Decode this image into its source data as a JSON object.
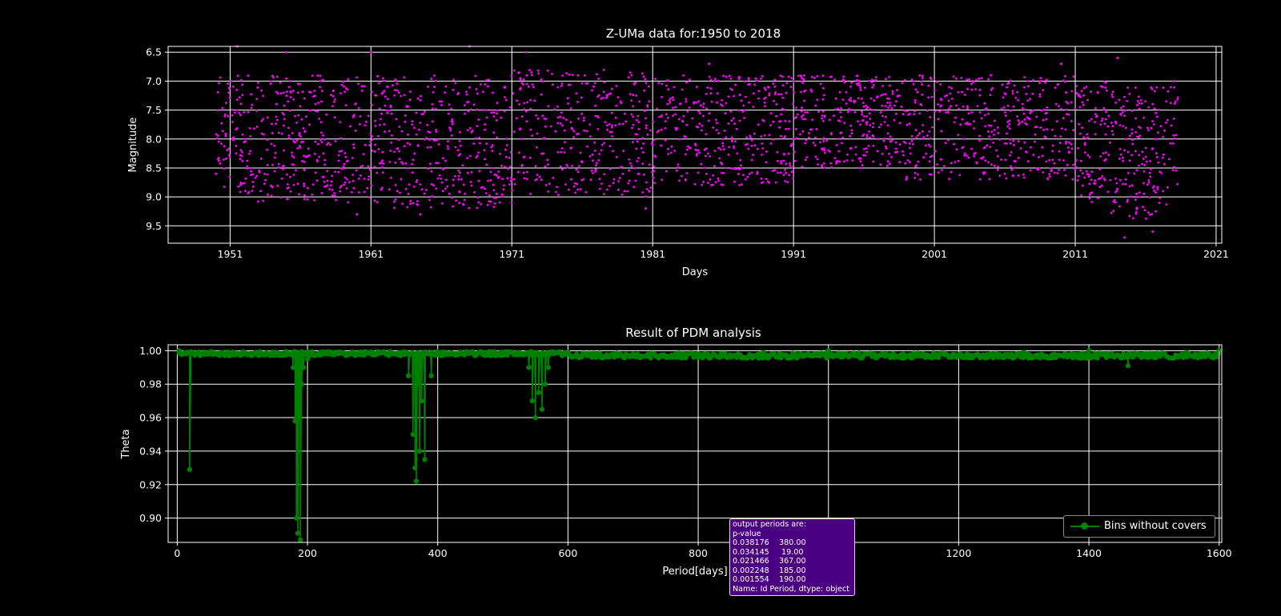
{
  "chart_data": [
    {
      "type": "scatter",
      "title": "Z-UMa data for:1950 to 2018",
      "xlabel": "Days",
      "ylabel": "Magnitude",
      "y_inverted": true,
      "xlim": [
        1946.6,
        2021.4
      ],
      "ylim": [
        9.8,
        6.4
      ],
      "x_ticks": [
        "1951",
        "1961",
        "1971",
        "1981",
        "1991",
        "2001",
        "2011",
        "2021"
      ],
      "y_ticks": [
        "6.5",
        "7.0",
        "7.5",
        "8.0",
        "8.5",
        "9.0",
        "9.5"
      ],
      "grid": true,
      "marker_color": "#ff00ff",
      "sample_points": [
        [
          1950.0,
          8.6
        ],
        [
          1951.5,
          6.4
        ],
        [
          1954.0,
          7.9
        ],
        [
          1955.0,
          6.5
        ],
        [
          1956.5,
          8.3
        ],
        [
          1960.0,
          9.3
        ],
        [
          1961.0,
          6.5
        ],
        [
          1964.5,
          9.3
        ],
        [
          1968.0,
          6.4
        ],
        [
          1970.5,
          7.1
        ],
        [
          1972.0,
          6.5
        ],
        [
          1976.0,
          8.4
        ],
        [
          1979.0,
          8.9
        ],
        [
          1980.5,
          9.2
        ],
        [
          1985.0,
          6.7
        ],
        [
          1990.0,
          7.8
        ],
        [
          1995.0,
          7.5
        ],
        [
          1999.0,
          8.7
        ],
        [
          2005.0,
          6.9
        ],
        [
          2010.0,
          6.7
        ],
        [
          2014.0,
          6.6
        ],
        [
          2014.5,
          9.7
        ],
        [
          2016.5,
          9.6
        ],
        [
          2018.0,
          7.0
        ]
      ]
    },
    {
      "type": "line",
      "title": "Result of PDM analysis",
      "xlabel": "Period[days]",
      "ylabel": "Theta",
      "xlim": [
        -14,
        1604
      ],
      "ylim": [
        0.8855,
        1.0035
      ],
      "x_ticks": [
        "0",
        "200",
        "400",
        "600",
        "800",
        "1000",
        "1200",
        "1400",
        "1600"
      ],
      "y_ticks": [
        "1.00",
        "0.98",
        "0.96",
        "0.94",
        "0.92",
        "0.90"
      ],
      "grid": true,
      "line_color": "#008000",
      "legend_position": "lower-right",
      "series": [
        {
          "name": "Bins without covers",
          "x": [
            3,
            15,
            19,
            23,
            40,
            80,
            120,
            160,
            178,
            181,
            183,
            185,
            187,
            189,
            191,
            194,
            200,
            220,
            260,
            300,
            340,
            355,
            362,
            365,
            367,
            370,
            372,
            375,
            380,
            390,
            420,
            480,
            530,
            540,
            545,
            550,
            555,
            560,
            565,
            570,
            600,
            700,
            800,
            900,
            1000,
            1100,
            1200,
            1300,
            1400,
            1460,
            1500,
            1550,
            1600
          ],
          "y": [
            1.0,
            0.999,
            0.929,
            0.999,
            0.998,
            0.997,
            0.999,
            0.998,
            0.99,
            0.958,
            0.9,
            0.891,
            0.96,
            0.887,
            0.98,
            0.99,
            0.995,
            0.999,
            0.998,
            0.999,
            0.998,
            0.985,
            0.95,
            0.93,
            0.922,
            0.98,
            0.94,
            0.97,
            0.935,
            0.985,
            0.998,
            0.999,
            0.998,
            0.99,
            0.97,
            0.96,
            0.975,
            0.965,
            0.98,
            0.99,
            0.999,
            0.998,
            0.996,
            0.999,
            1.0,
            0.998,
            0.997,
            0.999,
            1.0,
            0.991,
            0.998,
            0.999,
            1.0
          ]
        }
      ]
    }
  ],
  "info_box": {
    "lines": [
      "output periods are:",
      "p-value",
      "0.038176    380.00",
      "0.034145     19.00",
      "0.021466    367.00",
      "0.002248    185.00",
      "0.001554    190.00",
      "Name: Id Period, dtype: object"
    ]
  },
  "colors": {
    "background": "#000000",
    "scatter": "#ff00ff",
    "pdm_line": "#008000",
    "info_box": "#4b0082"
  }
}
